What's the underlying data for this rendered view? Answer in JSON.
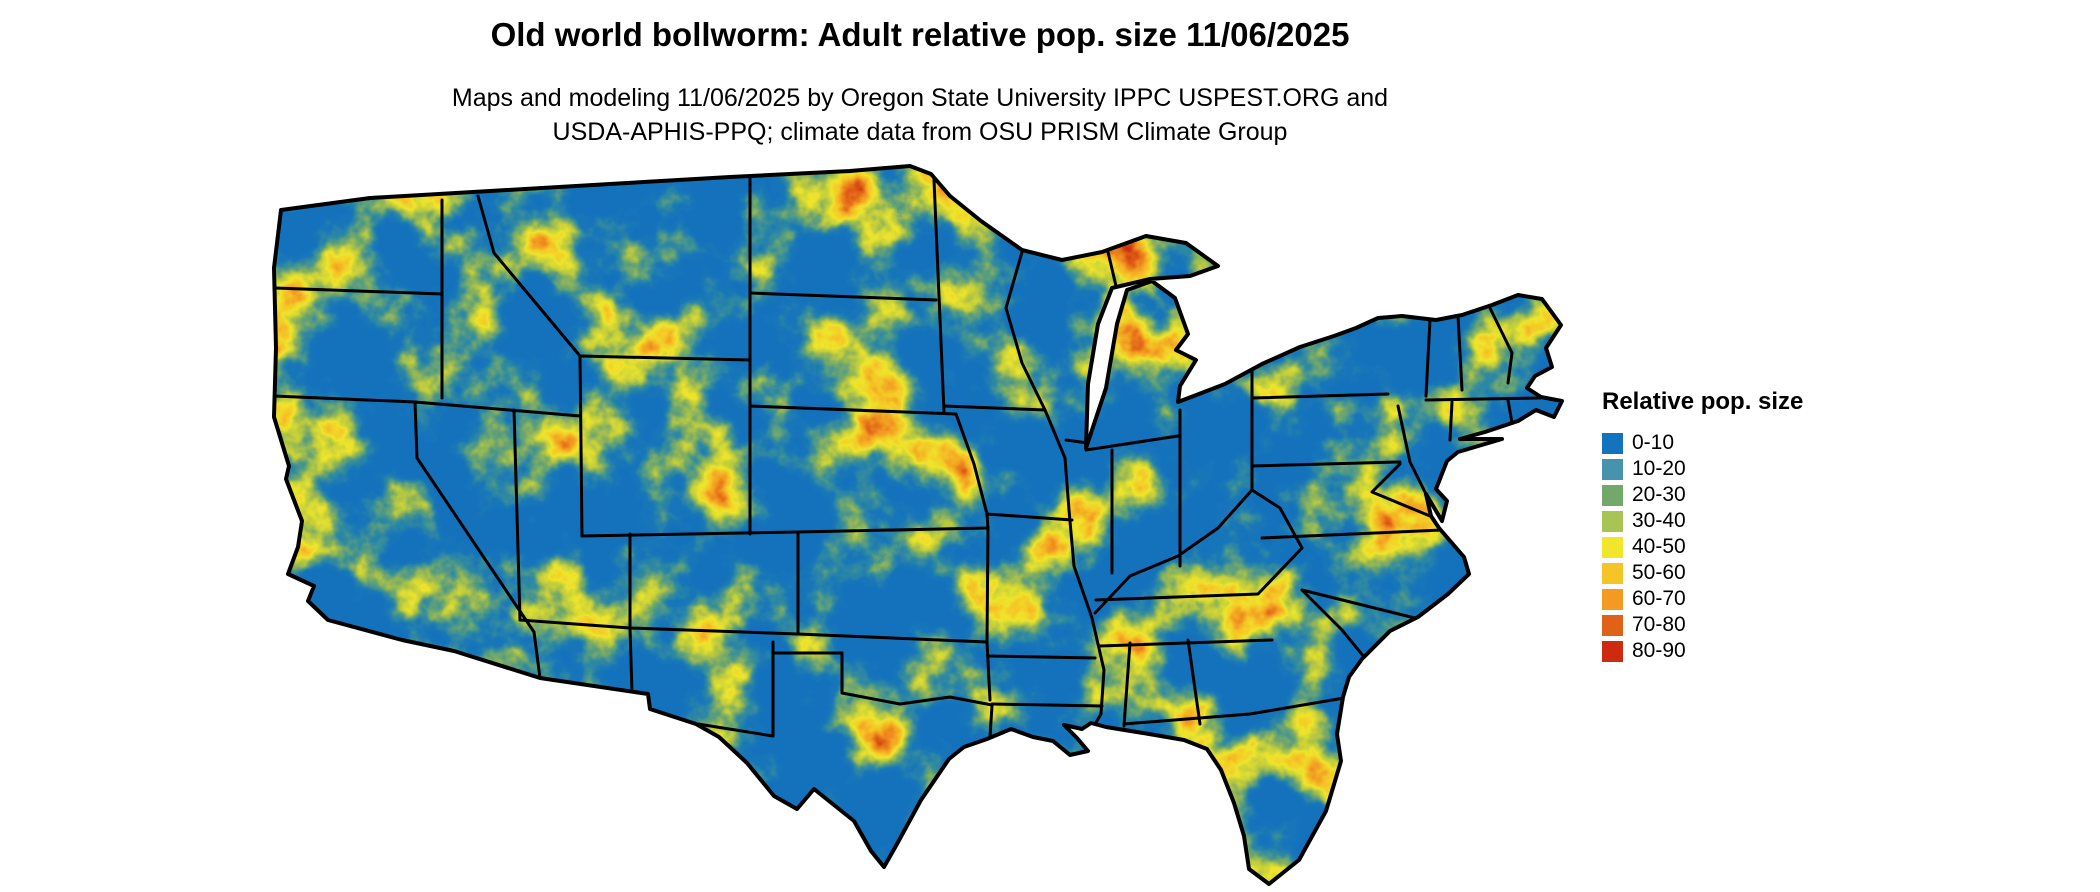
{
  "header": {
    "title": "Old world bollworm: Adult relative pop. size 11/06/2025",
    "subtitle_line1": "Maps and modeling 11/06/2025 by Oregon State University IPPC USPEST.ORG and",
    "subtitle_line2": "USDA-APHIS-PPQ; climate data from OSU PRISM Climate Group"
  },
  "map": {
    "region": "Contiguous United States",
    "base_color": "#1473bd",
    "border_color": "#000000"
  },
  "legend": {
    "title": "Relative pop. size",
    "entries": [
      {
        "label": "0-10",
        "color": "#1473bd"
      },
      {
        "label": "10-20",
        "color": "#4593ae"
      },
      {
        "label": "20-30",
        "color": "#72a96b"
      },
      {
        "label": "30-40",
        "color": "#a8c455"
      },
      {
        "label": "40-50",
        "color": "#f0e62b"
      },
      {
        "label": "50-60",
        "color": "#f5c426"
      },
      {
        "label": "60-70",
        "color": "#f29a21"
      },
      {
        "label": "70-80",
        "color": "#e06118"
      },
      {
        "label": "80-90",
        "color": "#cd2a10"
      }
    ]
  }
}
